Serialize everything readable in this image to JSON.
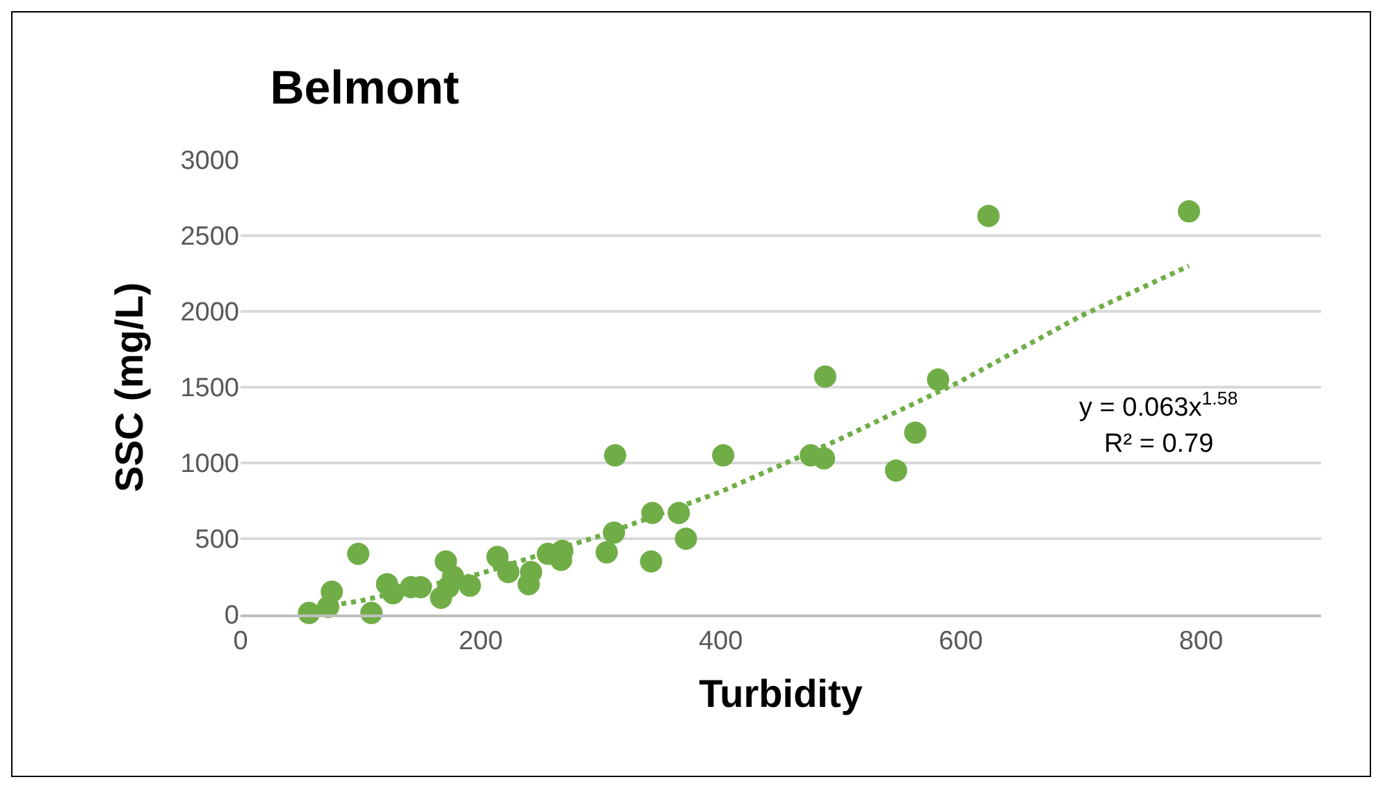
{
  "chart_data": {
    "type": "scatter",
    "title": "Belmont",
    "xlabel": "Turbidity",
    "ylabel": "SSC (mg/L)",
    "xlim": [
      0,
      900
    ],
    "xticks": [
      0,
      200,
      400,
      600,
      800
    ],
    "ylim": [
      0,
      3000
    ],
    "yticks": [
      0,
      500,
      1000,
      1500,
      2000,
      2500,
      3000
    ],
    "grid": "y",
    "marker": "circle",
    "annotations": [
      "y = 0.063x$^{1.58}$",
      "R² = 0.79"
    ],
    "series": [
      {
        "color": "#70ad47",
        "x": [
          57,
          73,
          76,
          98,
          109,
          122,
          127,
          142,
          150,
          167,
          171,
          167,
          177,
          173,
          191,
          214,
          223,
          240,
          242,
          256,
          268,
          267,
          305,
          311,
          312,
          343,
          342,
          365,
          371,
          402,
          475,
          486,
          487,
          546,
          562,
          581,
          623,
          790
        ],
        "values": [
          10,
          50,
          150,
          400,
          10,
          200,
          140,
          180,
          180,
          null,
          350,
          110,
          250,
          180,
          190,
          380,
          280,
          200,
          280,
          400,
          420,
          360,
          410,
          540,
          1050,
          670,
          350,
          670,
          500,
          1050,
          1050,
          1030,
          1570,
          950,
          1200,
          1550,
          2630,
          2660
        ]
      },
      {
        "type": "line",
        "line_style": "dotted",
        "marker": "none",
        "color": "#70ad47",
        "x": [
          60,
          100,
          200,
          300,
          400,
          500,
          600,
          700,
          790
        ],
        "values": [
          40,
          90,
          270,
          520,
          810,
          1160,
          1540,
          1970,
          2300
        ]
      }
    ]
  }
}
